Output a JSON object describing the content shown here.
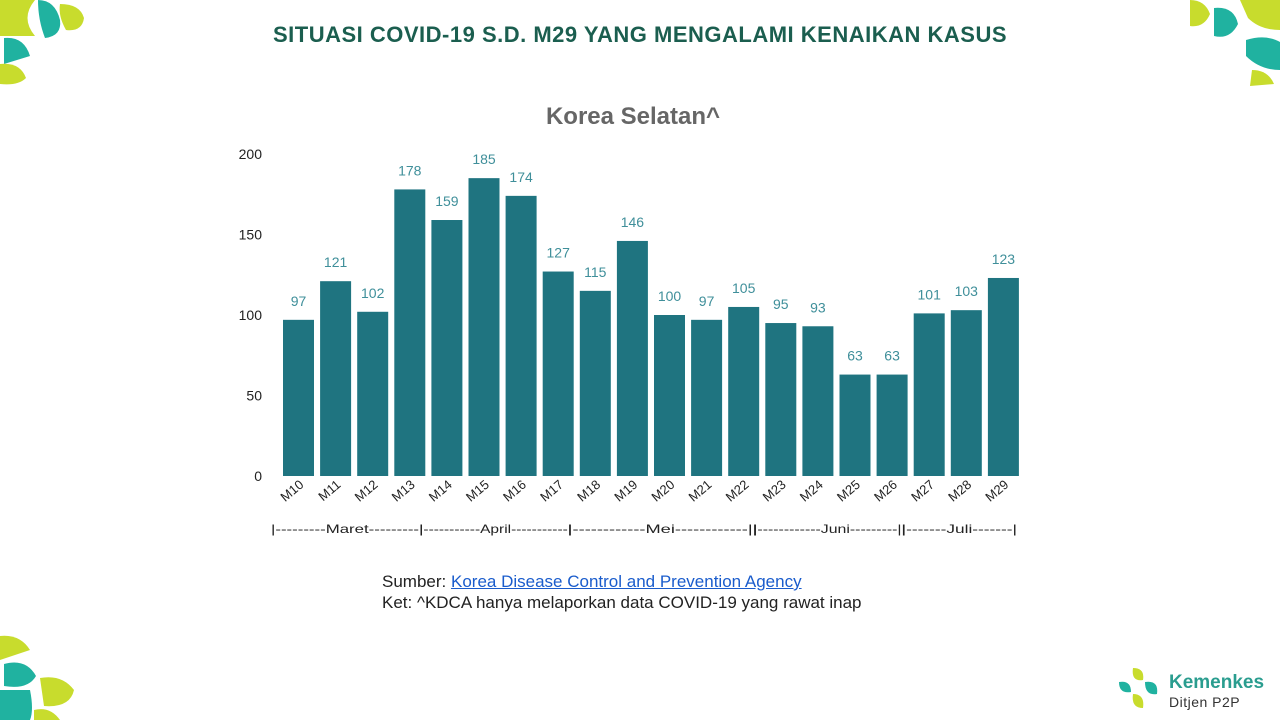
{
  "slide": {
    "title": "SITUASI COVID-19 S.D. M29 YANG MENGALAMI KENAIKAN KASUS"
  },
  "chart_data": {
    "type": "bar",
    "title": "Korea Selatan^",
    "categories": [
      "M10",
      "M11",
      "M12",
      "M13",
      "M14",
      "M15",
      "M16",
      "M17",
      "M18",
      "M19",
      "M20",
      "M21",
      "M22",
      "M23",
      "M24",
      "M25",
      "M26",
      "M27",
      "M28",
      "M29"
    ],
    "values": [
      97,
      121,
      102,
      178,
      159,
      185,
      174,
      127,
      115,
      146,
      100,
      97,
      105,
      95,
      93,
      63,
      63,
      101,
      103,
      123
    ],
    "ylim": [
      0,
      200
    ],
    "yticks": [
      0,
      50,
      100,
      150,
      200
    ],
    "xlabel": "",
    "ylabel": "",
    "grid": false,
    "data_labels": true,
    "month_groups": [
      {
        "label": "|---------Maret---------|",
        "start": 0,
        "end": 4
      },
      {
        "label": "|-----------April-----------|",
        "start": 4,
        "end": 8
      },
      {
        "label": "|------------Mei------------||",
        "start": 8,
        "end": 13
      },
      {
        "label": "|------------Juni---------||",
        "start": 13,
        "end": 17
      },
      {
        "label": "|-------Juli-------|",
        "start": 17,
        "end": 20
      }
    ],
    "bar_color": "#1f7480",
    "label_color": "#3f8f9a"
  },
  "source": {
    "prefix": "Sumber: ",
    "link_text": "Korea Disease Control and Prevention Agency",
    "note": "Ket: ^KDCA hanya melaporkan data COVID-19 yang rawat inap"
  },
  "logo": {
    "name": "Kemenkes",
    "subtitle": "Ditjen P2P"
  },
  "colors": {
    "title": "#1b5e4f",
    "lime": "#c8dc2d",
    "teal": "#20b2a0"
  }
}
